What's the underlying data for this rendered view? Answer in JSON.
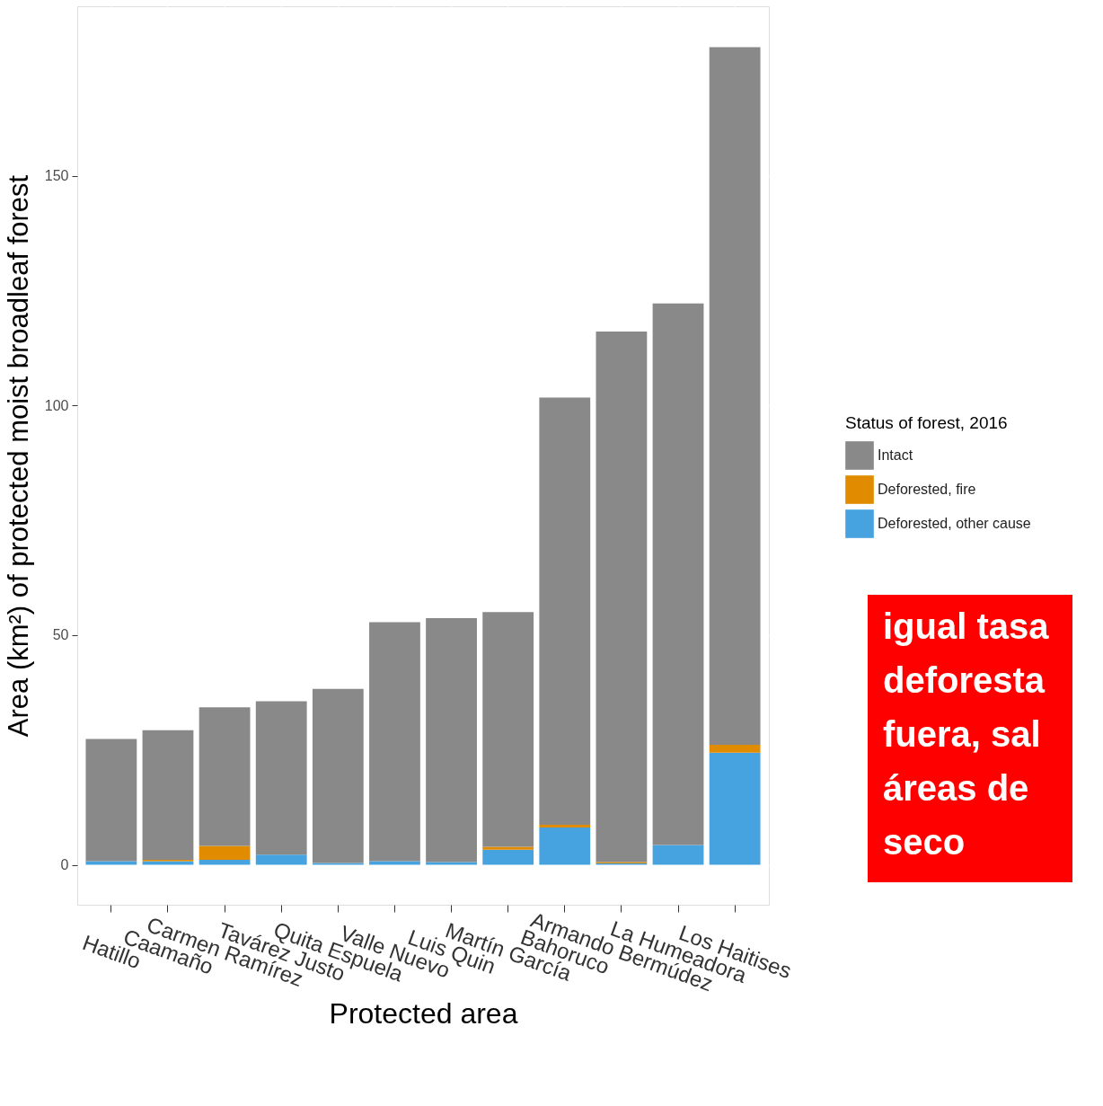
{
  "chart_data": {
    "type": "bar",
    "stacked": true,
    "xlabel": "Protected area",
    "ylabel": "Area (km²) of protected moist broadleaf forest",
    "legend_title": "Status of forest, 2016",
    "legend": "right",
    "categories": [
      "Hatillo",
      "Caamaño",
      "Carmen Ramírez",
      "Tavárez Justo",
      "Quita Espuela",
      "Valle Nuevo",
      "Luis Quin",
      "Martín García",
      "Bahoruco",
      "Armando Bermúdez",
      "La Humeadora",
      "Los Haitises"
    ],
    "series": [
      {
        "name": "Deforested, other cause",
        "color": "#47a3e0",
        "values": [
          0.8,
          0.8,
          1.1,
          2.2,
          0.4,
          0.8,
          0.6,
          3.3,
          8.1,
          0.3,
          4.3,
          24.4
        ]
      },
      {
        "name": "Deforested, fire",
        "color": "#e08b00",
        "values": [
          0,
          0.3,
          3.0,
          0,
          0,
          0,
          0,
          0.6,
          0.6,
          0.3,
          0,
          1.7
        ]
      },
      {
        "name": "Intact",
        "color": "#898989",
        "values": [
          26.6,
          28.2,
          30.2,
          33.4,
          37.9,
          52.0,
          53.1,
          51.1,
          93.0,
          115.5,
          117.9,
          151.9
        ]
      }
    ],
    "ylim": [
      -8.7,
      186.9
    ],
    "yticks": [
      0,
      50,
      100,
      150
    ],
    "grid": true,
    "annotations": [
      "igual tasa\ndeforesta\nfuera, sal\náreas de\nseco"
    ]
  }
}
